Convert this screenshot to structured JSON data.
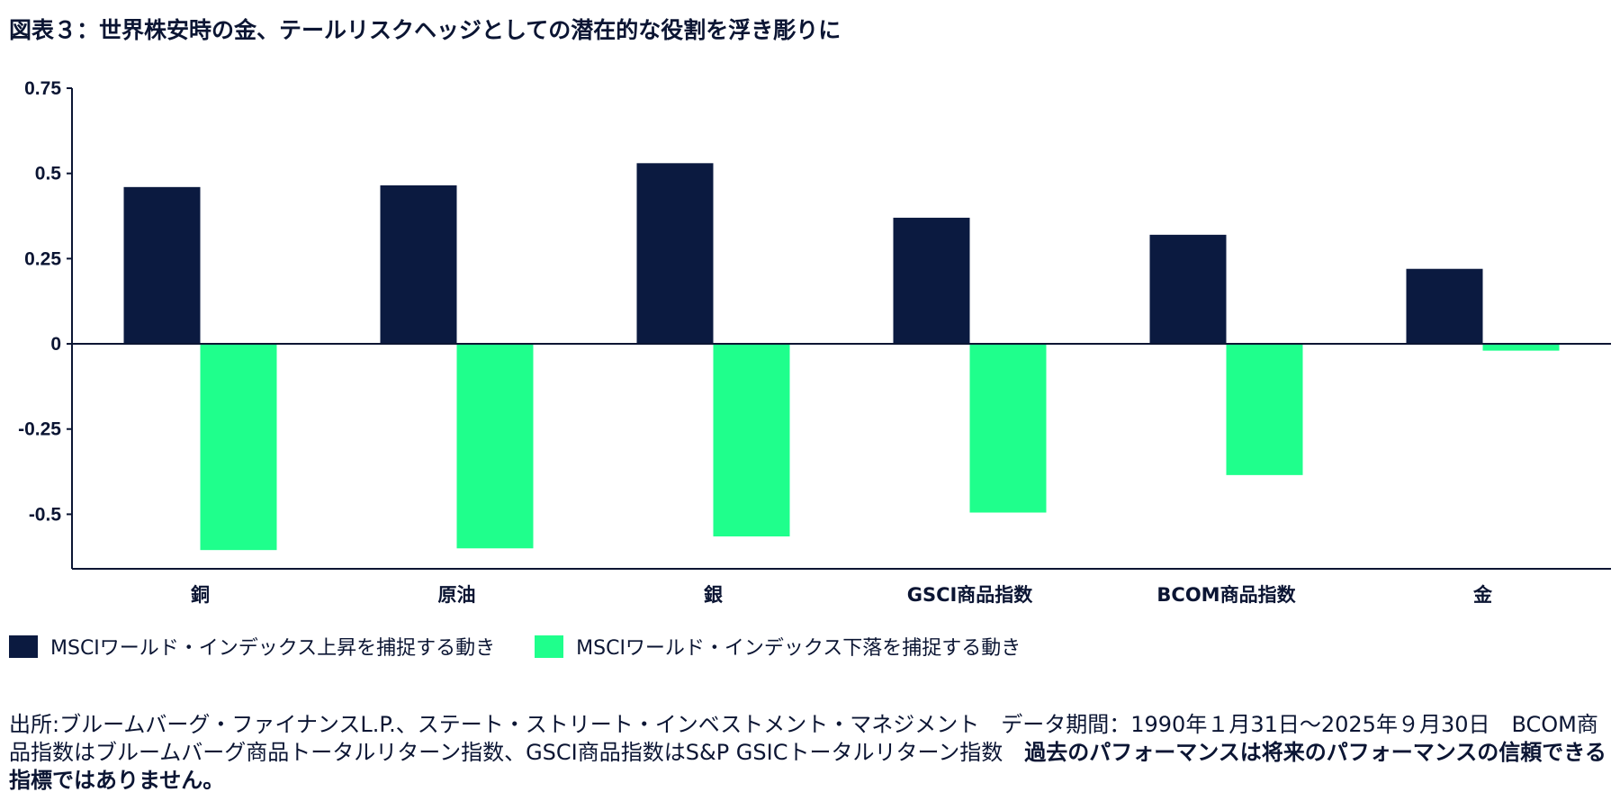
{
  "title": "図表３：世界株安時の金、テールリスクヘッジとしての潜在的な役割を浮き彫りに",
  "chart_data": {
    "type": "bar",
    "categories": [
      "銅",
      "原油",
      "銀",
      "GSCI商品指数",
      "BCOM商品指数",
      "金"
    ],
    "series": [
      {
        "name": "MSCIワールド・インデックス上昇を捕捉する動き",
        "color": "#0b1a40",
        "values": [
          0.46,
          0.465,
          0.53,
          0.37,
          0.32,
          0.22
        ]
      },
      {
        "name": "MSCIワールド・インデックス下落を捕捉する動き",
        "color": "#1fff8c",
        "values": [
          -0.605,
          -0.6,
          -0.565,
          -0.495,
          -0.385,
          -0.02
        ]
      }
    ],
    "ylim": [
      -0.66,
      0.75
    ],
    "yticks": [
      "0.75",
      "0.5",
      "0.25",
      "0",
      "-0.25",
      "-0.5"
    ],
    "xlabel": "",
    "ylabel": "",
    "legend_position": "bottom-left",
    "grid": false
  },
  "source": {
    "text": "出所:ブルームバーグ・ファイナンスL.P.、ステート・ストリート・インベストメント・マネジメント　データ期間：1990年１月31日～2025年９月30日　BCOM商品指数はブルームバーグ商品トータルリターン指数、GSCI商品指数はS&P GSICトータルリターン指数",
    "note": "過去のパフォーマンスは将来のパフォーマンスの信頼できる指標ではありません。"
  }
}
